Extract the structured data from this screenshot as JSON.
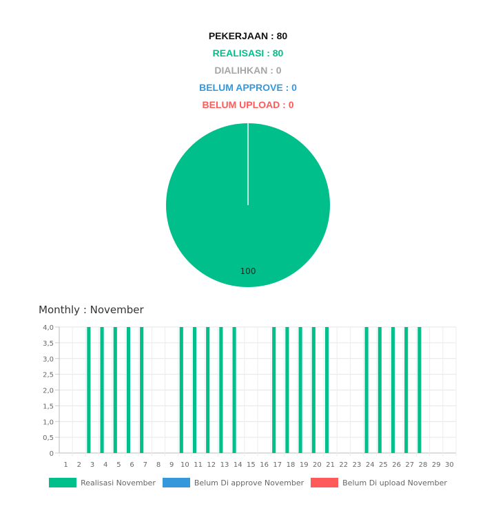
{
  "stats": {
    "pekerjaan": "PEKERJAAN : 80",
    "realisasi": "REALISASI : 80",
    "dialihkan": "DIALIHKAN : 0",
    "belum_approve": "BELUM APPROVE : 0",
    "belum_upload": "BELUM UPLOAD : 0"
  },
  "colors": {
    "black": "#111111",
    "green": "#00bf8a",
    "gray": "#a6a6a6",
    "blue": "#3498db",
    "red": "#ff5a5a"
  },
  "monthly_title": "Monthly : November",
  "legend": [
    {
      "label": "Realisasi November",
      "color": "#00bf8a"
    },
    {
      "label": "Belum Di approve November",
      "color": "#3498db"
    },
    {
      "label": "Belum Di upload November",
      "color": "#ff5a5a"
    }
  ],
  "chart_data": [
    {
      "type": "pie",
      "slices": [
        {
          "label": "Realisasi",
          "value": 100,
          "color": "#00bf8a"
        }
      ],
      "data_label": "100"
    },
    {
      "type": "bar",
      "categories": [
        "1",
        "2",
        "3",
        "4",
        "5",
        "6",
        "7",
        "8",
        "9",
        "10",
        "11",
        "12",
        "13",
        "14",
        "15",
        "16",
        "17",
        "18",
        "19",
        "20",
        "21",
        "22",
        "23",
        "24",
        "25",
        "26",
        "27",
        "28",
        "29",
        "30"
      ],
      "series": [
        {
          "name": "Realisasi November",
          "color": "#00bf8a",
          "values": [
            0,
            0,
            4,
            4,
            4,
            4,
            4,
            0,
            0,
            4,
            4,
            4,
            4,
            4,
            0,
            0,
            4,
            4,
            4,
            4,
            4,
            0,
            0,
            4,
            4,
            4,
            4,
            4,
            0,
            0
          ]
        },
        {
          "name": "Belum Di approve November",
          "color": "#3498db",
          "values": [
            0,
            0,
            0,
            0,
            0,
            0,
            0,
            0,
            0,
            0,
            0,
            0,
            0,
            0,
            0,
            0,
            0,
            0,
            0,
            0,
            0,
            0,
            0,
            0,
            0,
            0,
            0,
            0,
            0,
            0
          ]
        },
        {
          "name": "Belum Di upload November",
          "color": "#ff5a5a",
          "values": [
            0,
            0,
            0,
            0,
            0,
            0,
            0,
            0,
            0,
            0,
            0,
            0,
            0,
            0,
            0,
            0,
            0,
            0,
            0,
            0,
            0,
            0,
            0,
            0,
            0,
            0,
            0,
            0,
            0,
            0
          ]
        }
      ],
      "ylim": [
        0,
        4
      ],
      "yticks": [
        "0",
        "0,5",
        "1,0",
        "1,5",
        "2,0",
        "2,5",
        "3,0",
        "3,5",
        "4,0"
      ],
      "grid": true,
      "legend_position": "bottom"
    }
  ]
}
